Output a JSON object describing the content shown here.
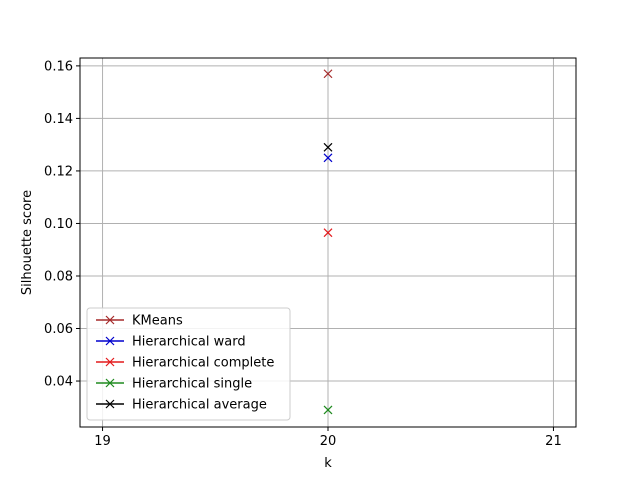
{
  "chart_data": {
    "type": "scatter",
    "title": "",
    "xlabel": "k",
    "ylabel": "Silhouette score",
    "xlim": [
      18.9,
      21.1
    ],
    "ylim": [
      0.0225,
      0.163
    ],
    "x_ticks": [
      19,
      20,
      21
    ],
    "x_tick_labels": [
      "19",
      "20",
      "21"
    ],
    "y_ticks": [
      0.04,
      0.06,
      0.08,
      0.1,
      0.12,
      0.14,
      0.16
    ],
    "y_tick_labels": [
      "0.04",
      "0.06",
      "0.08",
      "0.10",
      "0.12",
      "0.14",
      "0.16"
    ],
    "grid": true,
    "legend_position": "lower-left",
    "marker": "x",
    "series": [
      {
        "name": "KMeans",
        "color": "#a52a2a",
        "x": [
          20
        ],
        "y": [
          0.157
        ]
      },
      {
        "name": "Hierarchical ward",
        "color": "#0000cd",
        "x": [
          20
        ],
        "y": [
          0.125
        ]
      },
      {
        "name": "Hierarchical complete",
        "color": "#e41a1c",
        "x": [
          20
        ],
        "y": [
          0.0965
        ]
      },
      {
        "name": "Hierarchical single",
        "color": "#1e8a1e",
        "x": [
          20
        ],
        "y": [
          0.029
        ]
      },
      {
        "name": "Hierarchical average",
        "color": "#000000",
        "x": [
          20
        ],
        "y": [
          0.129
        ]
      }
    ]
  }
}
